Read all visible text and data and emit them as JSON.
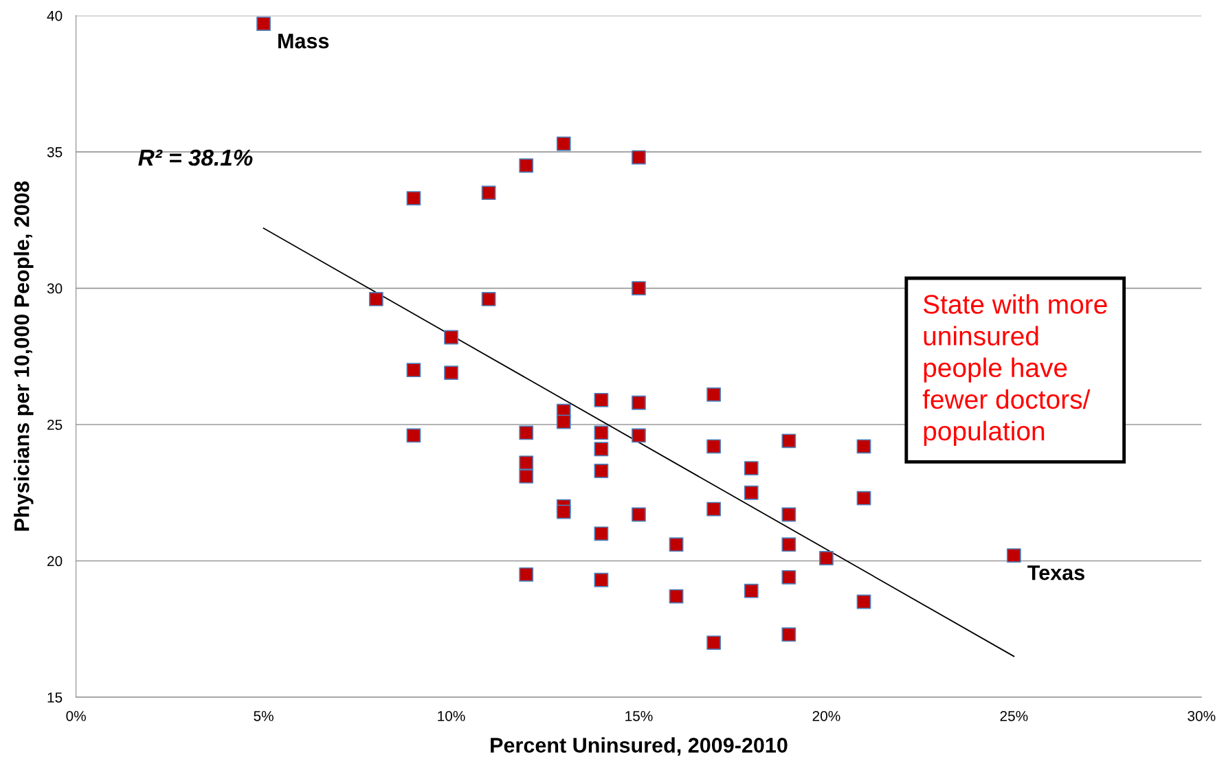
{
  "chart_data": {
    "type": "scatter",
    "xlabel": "Percent Uninsured, 2009-2010",
    "ylabel": "Physicians per 10,000 People, 2008",
    "series": [
      {
        "color": "#c00000",
        "marker": "square",
        "x": [
          5,
          9,
          11,
          12,
          13,
          15,
          8,
          11,
          15,
          10,
          9,
          10,
          9,
          12,
          12,
          12,
          12,
          13,
          13,
          13,
          13,
          14,
          14,
          14,
          14,
          14,
          14,
          15,
          15,
          15,
          16,
          16,
          17,
          17,
          17,
          17,
          18,
          18,
          18,
          19,
          19,
          19,
          19,
          19,
          20,
          21,
          21,
          21,
          25
        ],
        "values": [
          39.7,
          33.3,
          33.5,
          34.5,
          35.3,
          34.8,
          29.6,
          29.6,
          30.0,
          28.2,
          27.0,
          26.9,
          24.6,
          24.7,
          23.6,
          23.1,
          19.5,
          25.5,
          25.1,
          22.0,
          21.8,
          25.9,
          24.7,
          24.1,
          23.3,
          21.0,
          19.3,
          25.8,
          24.6,
          21.7,
          20.6,
          18.7,
          26.1,
          24.2,
          21.9,
          17.0,
          23.4,
          22.5,
          18.9,
          24.4,
          21.7,
          20.6,
          19.4,
          17.3,
          20.1,
          24.2,
          22.3,
          18.5,
          20.2
        ]
      },
      {
        "type": "line",
        "color": "#000000",
        "marker": "none",
        "line_style": "solid",
        "x": [
          5,
          25
        ],
        "values": [
          32.2,
          16.5
        ]
      }
    ],
    "xlim": [
      0,
      30
    ],
    "xticks": [
      {
        "value": 0,
        "label": "0%"
      },
      {
        "value": 5,
        "label": "5%"
      },
      {
        "value": 10,
        "label": "10%"
      },
      {
        "value": 15,
        "label": "15%"
      },
      {
        "value": 20,
        "label": "20%"
      },
      {
        "value": 25,
        "label": "25%"
      },
      {
        "value": 30,
        "label": "30%"
      }
    ],
    "ylim": [
      15,
      40
    ],
    "yticks": [
      15,
      20,
      25,
      30,
      35,
      40
    ],
    "grid": "y",
    "legend": false,
    "annotations": [
      {
        "text": "Mass",
        "x": 5,
        "y": 39.7
      },
      {
        "text": "Texas",
        "x": 25,
        "y": 20.2
      },
      "R² = 38.1%",
      "State with more\nuninsured\npeople have\nfewer doctors/\npopulation"
    ]
  }
}
